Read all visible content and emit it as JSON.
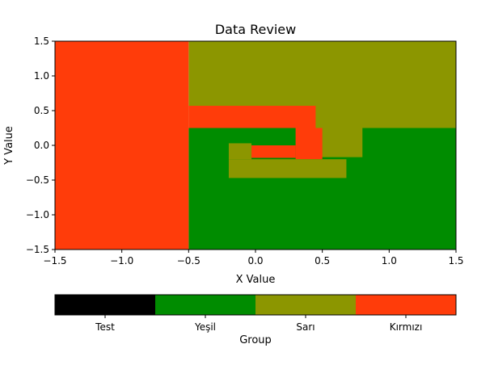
{
  "chart_data": {
    "type": "heatmap",
    "title": "Data Review",
    "xlabel": "X Value",
    "ylabel": "Y Value",
    "xlim": [
      -1.5,
      1.5
    ],
    "ylim": [
      -1.5,
      1.5
    ],
    "x_ticks": [
      -1.5,
      -1.0,
      -0.5,
      0.0,
      0.5,
      1.0,
      1.5
    ],
    "x_tick_labels": [
      "−1.5",
      "−1.0",
      "−0.5",
      "0.0",
      "0.5",
      "1.0",
      "1.5"
    ],
    "y_ticks": [
      -1.5,
      -1.0,
      -0.5,
      0.0,
      0.5,
      1.0,
      1.5
    ],
    "y_tick_labels": [
      "−1.5",
      "−1.0",
      "−0.5",
      "0.0",
      "0.5",
      "1.0",
      "1.5"
    ],
    "grid": false,
    "colorbar": {
      "label": "Group",
      "orientation": "horizontal",
      "categories": [
        {
          "label": "Test",
          "color": "#000000"
        },
        {
          "label": "Yeşil",
          "color": "#008c00"
        },
        {
          "label": "Sarı",
          "color": "#8c9600"
        },
        {
          "label": "Kırmızı",
          "color": "#ff3c0a"
        }
      ]
    },
    "regions": [
      {
        "category": "Sarı",
        "x": [
          -0.5,
          1.5
        ],
        "y": [
          -1.5,
          1.5
        ]
      },
      {
        "category": "Yeşil",
        "x": [
          -0.5,
          1.5
        ],
        "y": [
          -1.5,
          0.25
        ]
      },
      {
        "category": "Sarı",
        "x": [
          0.45,
          0.8
        ],
        "y": [
          -0.17,
          0.25
        ]
      },
      {
        "category": "Sarı",
        "x": [
          0.8,
          1.5
        ],
        "y": [
          0.25,
          0.27
        ]
      },
      {
        "category": "Kırmızı",
        "x": [
          -0.5,
          0.45
        ],
        "y": [
          0.25,
          0.57
        ]
      },
      {
        "category": "Kırmızı",
        "x": [
          0.3,
          0.5
        ],
        "y": [
          -0.2,
          0.25
        ]
      },
      {
        "category": "Sarı",
        "x": [
          -0.2,
          0.68
        ],
        "y": [
          -0.47,
          -0.2
        ]
      },
      {
        "category": "Sarı",
        "x": [
          -0.2,
          -0.03
        ],
        "y": [
          -0.2,
          0.03
        ]
      },
      {
        "category": "Kırmızı",
        "x": [
          -0.03,
          0.3
        ],
        "y": [
          -0.18,
          0.0
        ]
      },
      {
        "category": "Kırmızı",
        "x": [
          -1.5,
          -0.5
        ],
        "y": [
          -1.5,
          1.5
        ]
      }
    ]
  }
}
